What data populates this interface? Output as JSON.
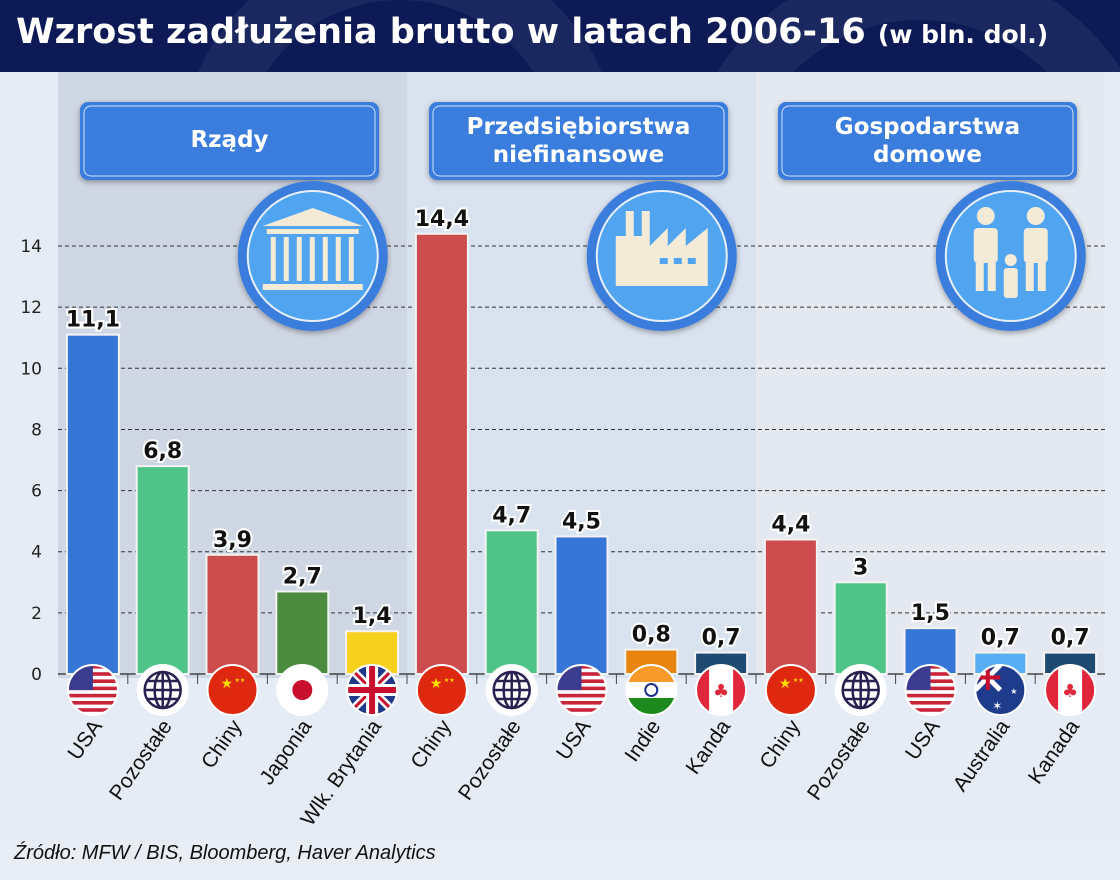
{
  "title": "Wzrost zadłużenia brutto w latach 2006-16",
  "title_unit": "(w bln. dol.)",
  "source": "Źródło: MFW / BIS, Bloomberg, Haver Analytics",
  "chart_data": {
    "type": "bar",
    "title": "Wzrost zadłużenia brutto w latach 2006-16 (w bln. dol.)",
    "xlabel": "",
    "ylabel": "",
    "ylim": [
      0,
      15.5
    ],
    "yticks": [
      0,
      2,
      4,
      6,
      8,
      10,
      12,
      14
    ],
    "grid": true,
    "groups": [
      {
        "name": "Rządy",
        "icon": "government-building-icon",
        "bars": [
          {
            "label": "USA",
            "value": 11.1,
            "display": "11,1",
            "color": "#3676d6",
            "flag": "usa"
          },
          {
            "label": "Pozostałe",
            "value": 6.8,
            "display": "6,8",
            "color": "#4ec489",
            "flag": "globe"
          },
          {
            "label": "Chiny",
            "value": 3.9,
            "display": "3,9",
            "color": "#cd4d4e",
            "flag": "china"
          },
          {
            "label": "Japonia",
            "value": 2.7,
            "display": "2,7",
            "color": "#4b8c3e",
            "flag": "japan"
          },
          {
            "label": "Wlk. Brytania",
            "value": 1.4,
            "display": "1,4",
            "color": "#f6d21e",
            "flag": "uk"
          }
        ]
      },
      {
        "name": "Przedsiębiorstwa niefinansowe",
        "icon": "factory-icon",
        "bars": [
          {
            "label": "Chiny",
            "value": 14.4,
            "display": "14,4",
            "color": "#cd4d4e",
            "flag": "china"
          },
          {
            "label": "Pozostałe",
            "value": 4.7,
            "display": "4,7",
            "color": "#4ec489",
            "flag": "globe"
          },
          {
            "label": "USA",
            "value": 4.5,
            "display": "4,5",
            "color": "#3676d6",
            "flag": "usa"
          },
          {
            "label": "Indie",
            "value": 0.8,
            "display": "0,8",
            "color": "#e8850f",
            "flag": "india"
          },
          {
            "label": "Kanda",
            "value": 0.7,
            "display": "0,7",
            "color": "#1e4a72",
            "flag": "canada"
          }
        ]
      },
      {
        "name": "Gospodarstwa domowe",
        "icon": "family-icon",
        "bars": [
          {
            "label": "Chiny",
            "value": 4.4,
            "display": "4,4",
            "color": "#cd4d4e",
            "flag": "china"
          },
          {
            "label": "Pozostałe",
            "value": 3,
            "display": "3",
            "color": "#4ec489",
            "flag": "globe"
          },
          {
            "label": "USA",
            "value": 1.5,
            "display": "1,5",
            "color": "#3676d6",
            "flag": "usa"
          },
          {
            "label": "Australia",
            "value": 0.7,
            "display": "0,7",
            "color": "#58aef2",
            "flag": "australia"
          },
          {
            "label": "Kanada",
            "value": 0.7,
            "display": "0,7",
            "color": "#1e4a72",
            "flag": "canada"
          }
        ]
      }
    ]
  }
}
